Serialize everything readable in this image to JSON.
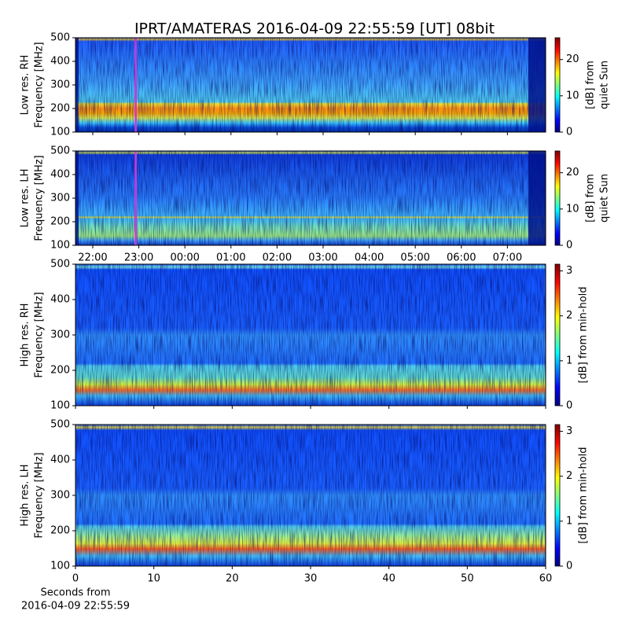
{
  "chart_data": [
    {
      "type": "spectrogram",
      "title": "IPRT/AMATERAS 2016-04-09 22:55:59 [UT]   08bit",
      "ylabel": [
        "Low res. RH",
        "Frequency [MHz]"
      ],
      "ylim": [
        100,
        500
      ],
      "yticks": [
        100,
        200,
        300,
        400,
        500
      ],
      "xlim": [
        21.625,
        31.83
      ],
      "sharex": 1,
      "marker_x": 22.933,
      "marker_color": "#d633d6",
      "colormap": "jet",
      "colorbar": {
        "label": [
          "[dB] from",
          "quiet Sun"
        ],
        "lim": [
          0,
          26
        ],
        "ticks": [
          0,
          10,
          20
        ]
      }
    },
    {
      "type": "spectrogram",
      "ylabel": [
        "Low res. LH",
        "Frequency [MHz]"
      ],
      "ylim": [
        100,
        500
      ],
      "yticks": [
        100,
        200,
        300,
        400,
        500
      ],
      "xlim": [
        21.625,
        31.83
      ],
      "xticks": [
        {
          "value": 22,
          "label": "22:00"
        },
        {
          "value": 23,
          "label": "23:00"
        },
        {
          "value": 24,
          "label": "00:00"
        },
        {
          "value": 25,
          "label": "01:00"
        },
        {
          "value": 26,
          "label": "02:00"
        },
        {
          "value": 27,
          "label": "03:00"
        },
        {
          "value": 28,
          "label": "04:00"
        },
        {
          "value": 29,
          "label": "05:00"
        },
        {
          "value": 30,
          "label": "06:00"
        },
        {
          "value": 31,
          "label": "07:00"
        }
      ],
      "marker_x": 22.933,
      "marker_color": "#d633d6",
      "colormap": "jet",
      "colorbar": {
        "label": [
          "[dB] from",
          "quiet Sun"
        ],
        "lim": [
          0,
          26
        ],
        "ticks": [
          0,
          10,
          20
        ]
      }
    },
    {
      "type": "spectrogram",
      "ylabel": [
        "High res. RH",
        "Frequency [MHz]"
      ],
      "ylim": [
        100,
        500
      ],
      "yticks": [
        100,
        200,
        300,
        400,
        500
      ],
      "xlim": [
        0,
        60
      ],
      "sharex": 3,
      "colormap": "jet",
      "colorbar": {
        "label": [
          "[dB] from min-hold"
        ],
        "lim": [
          0,
          3.15
        ],
        "ticks": [
          0,
          1,
          2,
          3
        ]
      }
    },
    {
      "type": "spectrogram",
      "ylabel": [
        "High res. LH",
        "Frequency [MHz]"
      ],
      "ylim": [
        100,
        500
      ],
      "yticks": [
        100,
        200,
        300,
        400,
        500
      ],
      "xlim": [
        0,
        60
      ],
      "xticks": [
        0,
        10,
        20,
        30,
        40,
        50,
        60
      ],
      "xlabel": [
        "Seconds from",
        "2016-04-09 22:55:59"
      ],
      "colormap": "jet",
      "colorbar": {
        "label": [
          "[dB] from min-hold"
        ],
        "lim": [
          0,
          3.15
        ],
        "ticks": [
          0,
          1,
          2,
          3
        ]
      }
    }
  ]
}
